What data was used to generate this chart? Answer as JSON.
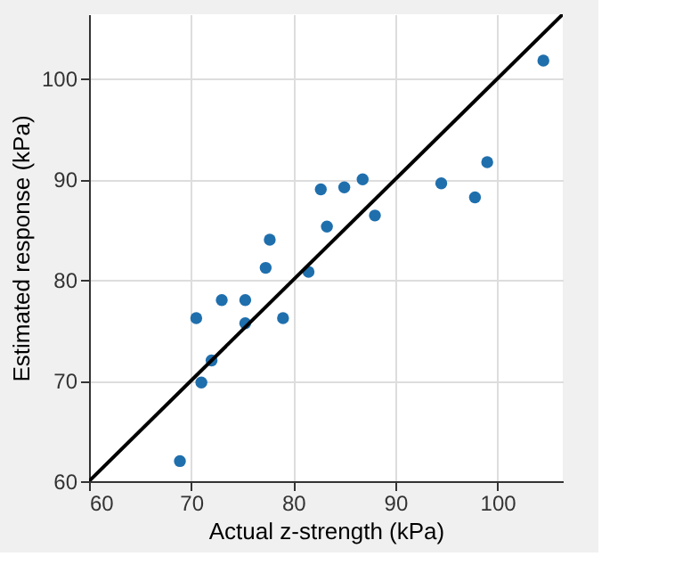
{
  "chart_data": {
    "type": "scatter",
    "xlabel": "Actual z-strength (kPa)",
    "ylabel": "Estimated response (kPa)",
    "xlim": [
      60,
      106.4
    ],
    "ylim": [
      60,
      106.4
    ],
    "xticks": [
      60,
      70,
      80,
      90,
      100
    ],
    "yticks": [
      60,
      70,
      80,
      90,
      100
    ],
    "grid": true,
    "series": [
      {
        "color": "#1f6fad",
        "marker": "circle",
        "x": [
          68.9,
          70.5,
          71,
          72,
          73,
          75.3,
          75.3,
          77.3,
          77.7,
          79,
          81.5,
          82.7,
          83.3,
          85,
          86.8,
          88,
          94.5,
          97.8,
          99,
          104.5
        ],
        "values": [
          62,
          76.2,
          69.8,
          72,
          78,
          78,
          75.7,
          81.2,
          84,
          76.2,
          80.8,
          89,
          85.3,
          89.2,
          90,
          86.4,
          89.6,
          88.2,
          91.7,
          101.8
        ]
      },
      {
        "type": "line",
        "color": "#000000",
        "line_style": "solid",
        "x": [
          60,
          106.4
        ],
        "values": [
          60,
          106.4
        ]
      }
    ]
  }
}
